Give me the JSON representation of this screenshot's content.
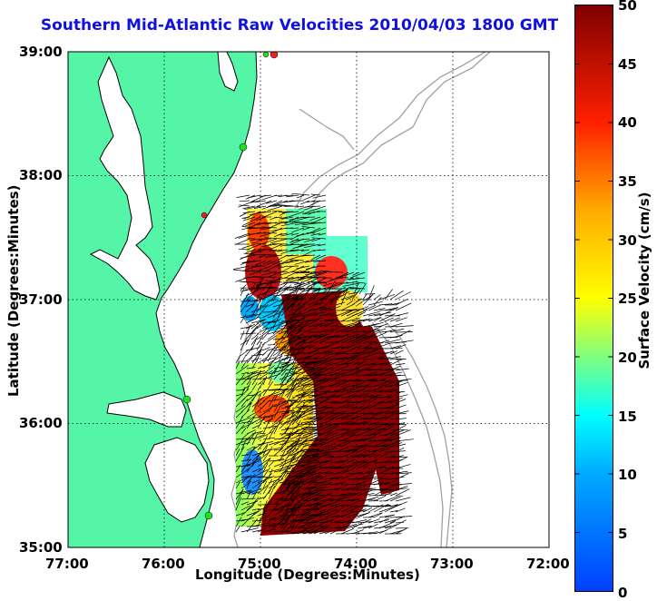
{
  "title": "Southern Mid-Atlantic Raw Velocities 2010/04/03 1800 GMT",
  "x_axis": {
    "label": "Longitude (Degrees:Minutes)",
    "ticks": [
      "77:00",
      "76:00",
      "75:00",
      "74:00",
      "73:00",
      "72:00"
    ]
  },
  "y_axis": {
    "label": "Latitude (Degrees:Minutes)",
    "ticks": [
      "39:00",
      "38:00",
      "37:00",
      "36:00",
      "35:00"
    ]
  },
  "colorbar": {
    "label": "Surface Velocity (cm/s)",
    "ticks": [
      "50",
      "45",
      "40",
      "35",
      "30",
      "25",
      "20",
      "15",
      "10",
      "5",
      "0"
    ],
    "range": [
      0,
      50
    ]
  },
  "colors": {
    "land": "#55f5a8",
    "title": "#1010e0",
    "bathymetry": "#a0a0a0",
    "coastline": "#000000",
    "station_green": "#22dd22",
    "station_red": "#ee2222"
  }
}
